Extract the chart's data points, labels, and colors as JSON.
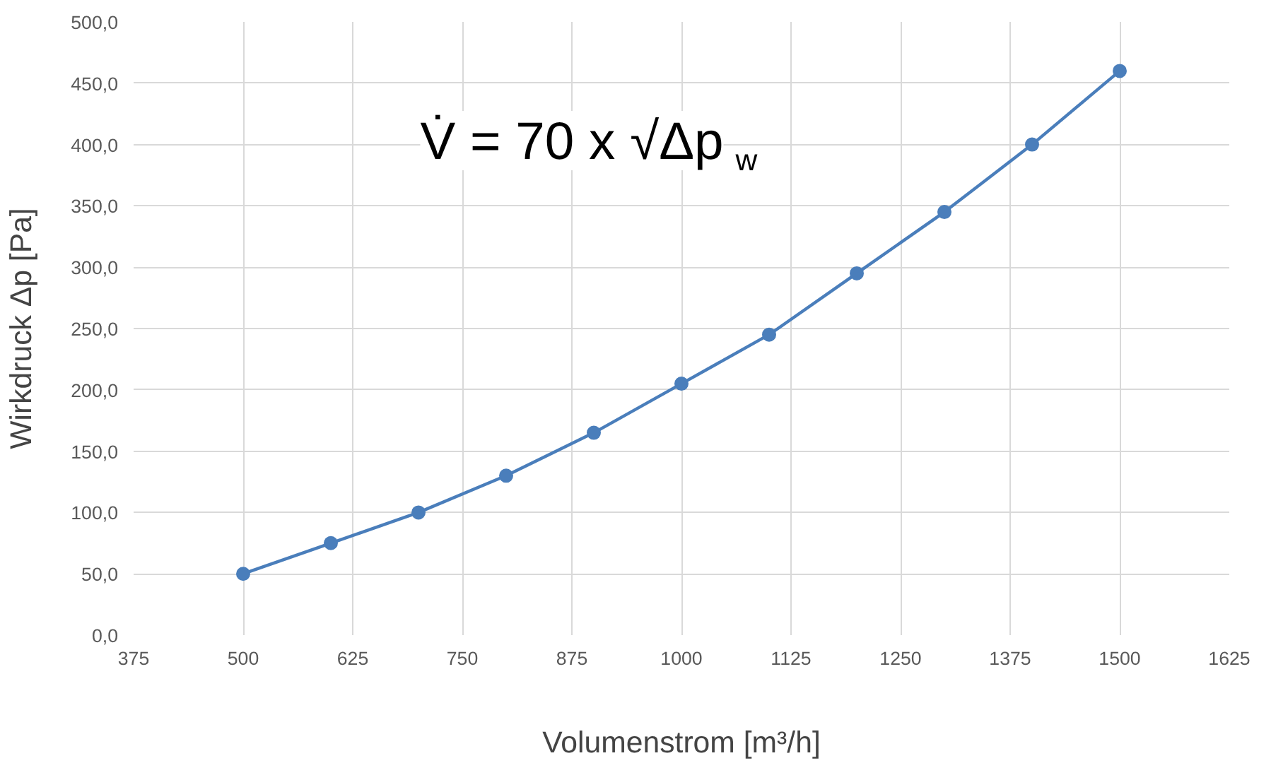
{
  "chart_data": {
    "type": "line",
    "xlabel": "Volumenstrom [m³/h]",
    "ylabel": "Wirkdruck Δp [Pa]",
    "annotations": [
      "V̇ = 70 x √Δp$_{w}$"
    ],
    "x": [
      500,
      600,
      700,
      800,
      900,
      1000,
      1100,
      1200,
      1300,
      1400,
      1500
    ],
    "series": [
      {
        "color": "#4a7ebb",
        "values": [
          50,
          75,
          100,
          130,
          165,
          205,
          245,
          295,
          345,
          400,
          460
        ]
      }
    ],
    "xlim": [
      375,
      1625
    ],
    "xticks": [
      375,
      500,
      625,
      750,
      875,
      1000,
      1125,
      1250,
      1375,
      1500,
      1625
    ],
    "ylim": [
      0,
      500
    ],
    "yticks": [
      {
        "value": 0,
        "label": "0,0"
      },
      {
        "value": 50,
        "label": "50,0"
      },
      {
        "value": 100,
        "label": "100,0"
      },
      {
        "value": 150,
        "label": "150,0"
      },
      {
        "value": 200,
        "label": "200,0"
      },
      {
        "value": 250,
        "label": "250,0"
      },
      {
        "value": 300,
        "label": "300,0"
      },
      {
        "value": 350,
        "label": "350,0"
      },
      {
        "value": 400,
        "label": "400,0"
      },
      {
        "value": 450,
        "label": "450,0"
      },
      {
        "value": 500,
        "label": "500,0"
      }
    ],
    "grid": true,
    "marker": "circle",
    "line_style": "solid"
  }
}
